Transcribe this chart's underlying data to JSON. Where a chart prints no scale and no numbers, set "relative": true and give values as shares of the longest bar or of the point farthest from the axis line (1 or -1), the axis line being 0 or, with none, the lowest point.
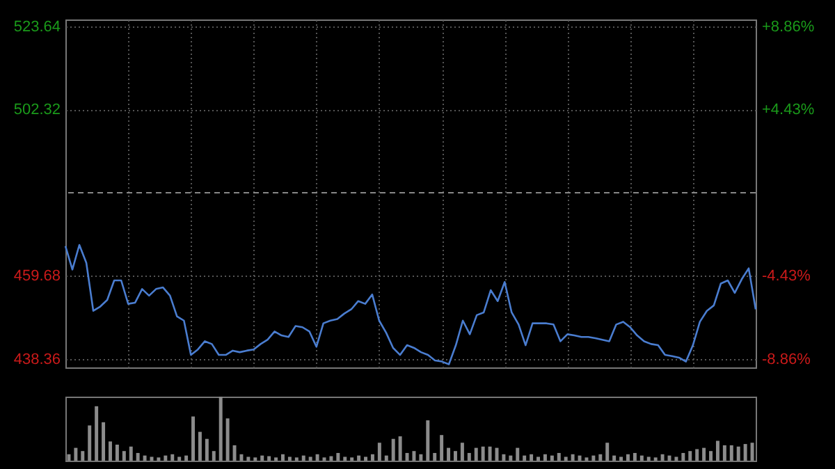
{
  "chart_data": [
    {
      "type": "line",
      "categories": [
        null,
        null,
        null,
        null,
        null,
        null,
        null,
        null,
        null,
        null,
        null,
        null,
        null,
        null,
        null,
        null,
        null,
        null,
        null,
        null,
        null,
        null,
        null,
        null,
        null,
        null,
        null,
        null,
        null,
        null,
        null,
        null,
        null,
        null,
        null,
        null,
        null,
        null,
        null,
        null,
        null,
        null,
        null,
        null,
        null,
        null,
        null,
        null,
        null,
        null,
        null,
        null,
        null,
        null,
        null,
        null,
        null,
        null,
        null,
        null,
        null,
        null,
        null,
        null,
        null,
        null,
        null,
        null,
        null,
        null,
        null,
        null,
        null,
        null,
        null,
        null,
        null,
        null,
        null,
        null,
        null,
        null,
        null,
        null,
        null,
        null,
        null,
        null,
        null,
        null,
        null,
        null,
        null,
        null,
        null,
        null,
        null,
        null,
        null,
        null
      ],
      "series": [
        {
          "color": "#4a7dd0",
          "values": [
            467.3,
            461.3,
            467.6,
            463.0,
            450.7,
            451.8,
            453.5,
            458.5,
            458.5,
            452.5,
            452.8,
            456.3,
            454.6,
            456.3,
            456.7,
            454.6,
            449.3,
            448.2,
            439.4,
            440.8,
            442.9,
            442.2,
            439.4,
            439.4,
            440.5,
            440.1,
            440.5,
            440.8,
            442.2,
            443.3,
            445.4,
            444.4,
            444.0,
            446.8,
            446.5,
            445.4,
            441.5,
            447.5,
            448.2,
            448.6,
            450.0,
            451.1,
            453.2,
            452.5,
            454.9,
            448.2,
            445.1,
            441.2,
            439.4,
            441.9,
            441.2,
            440.1,
            439.4,
            438.0,
            437.7,
            437.0,
            441.9,
            448.2,
            444.7,
            449.6,
            450.3,
            456.0,
            453.2,
            458.1,
            450.3,
            447.2,
            441.9,
            447.5,
            447.5,
            447.5,
            447.2,
            442.9,
            444.7,
            444.4,
            444.0,
            444.0,
            443.7,
            443.3,
            442.9,
            447.2,
            447.9,
            446.5,
            444.4,
            442.9,
            442.2,
            441.9,
            439.4,
            439.1,
            438.7,
            437.7,
            441.9,
            447.9,
            450.7,
            452.1,
            457.7,
            458.5,
            455.3,
            458.8,
            461.6,
            451.1
          ]
        }
      ],
      "ylim": [
        436.2,
        525.4
      ],
      "yticks": [
        438.36,
        459.68,
        502.32,
        523.64
      ],
      "y2lim": [
        -9.31,
        9.23
      ],
      "y2ticks": [
        {
          "value": -8.86,
          "label": "-8.86%"
        },
        {
          "value": -4.43,
          "label": "-4.43%"
        },
        {
          "value": 4.43,
          "label": "+4.43%"
        },
        {
          "value": 8.86,
          "label": "+8.86%"
        }
      ],
      "ref_lines": [
        {
          "axis": "y2",
          "value": 0,
          "color": "#888888",
          "line_style": "dashed"
        }
      ],
      "grid": true,
      "marker": "none",
      "line_style": "solid"
    },
    {
      "type": "bar",
      "relative": true,
      "categories": [
        null,
        null,
        null,
        null,
        null,
        null,
        null,
        null,
        null,
        null,
        null,
        null,
        null,
        null,
        null,
        null,
        null,
        null,
        null,
        null,
        null,
        null,
        null,
        null,
        null,
        null,
        null,
        null,
        null,
        null,
        null,
        null,
        null,
        null,
        null,
        null,
        null,
        null,
        null,
        null,
        null,
        null,
        null,
        null,
        null,
        null,
        null,
        null,
        null,
        null,
        null,
        null,
        null,
        null,
        null,
        null,
        null,
        null,
        null,
        null,
        null,
        null,
        null,
        null,
        null,
        null,
        null,
        null,
        null,
        null,
        null,
        null,
        null,
        null,
        null,
        null,
        null,
        null,
        null,
        null,
        null,
        null,
        null,
        null,
        null,
        null,
        null,
        null,
        null,
        null,
        null,
        null,
        null,
        null,
        null,
        null,
        null,
        null,
        null,
        null
      ],
      "series": [
        {
          "color": "#8c8c8c",
          "values": [
            0.1,
            0.2,
            0.15,
            0.55,
            0.85,
            0.6,
            0.3,
            0.25,
            0.15,
            0.22,
            0.12,
            0.08,
            0.06,
            0.05,
            0.08,
            0.1,
            0.06,
            0.08,
            0.69,
            0.45,
            0.34,
            0.15,
            1.0,
            0.66,
            0.24,
            0.1,
            0.06,
            0.05,
            0.08,
            0.07,
            0.05,
            0.1,
            0.06,
            0.05,
            0.08,
            0.06,
            0.1,
            0.05,
            0.07,
            0.12,
            0.06,
            0.05,
            0.08,
            0.06,
            0.1,
            0.28,
            0.08,
            0.34,
            0.38,
            0.12,
            0.15,
            0.1,
            0.63,
            0.12,
            0.4,
            0.2,
            0.15,
            0.28,
            0.12,
            0.2,
            0.22,
            0.22,
            0.2,
            0.1,
            0.08,
            0.2,
            0.08,
            0.1,
            0.06,
            0.1,
            0.08,
            0.12,
            0.06,
            0.1,
            0.08,
            0.05,
            0.08,
            0.1,
            0.28,
            0.08,
            0.06,
            0.1,
            0.12,
            0.08,
            0.06,
            0.05,
            0.1,
            0.08,
            0.06,
            0.12,
            0.15,
            0.18,
            0.2,
            0.15,
            0.31,
            0.24,
            0.24,
            0.22,
            0.26,
            0.28
          ]
        }
      ]
    }
  ]
}
